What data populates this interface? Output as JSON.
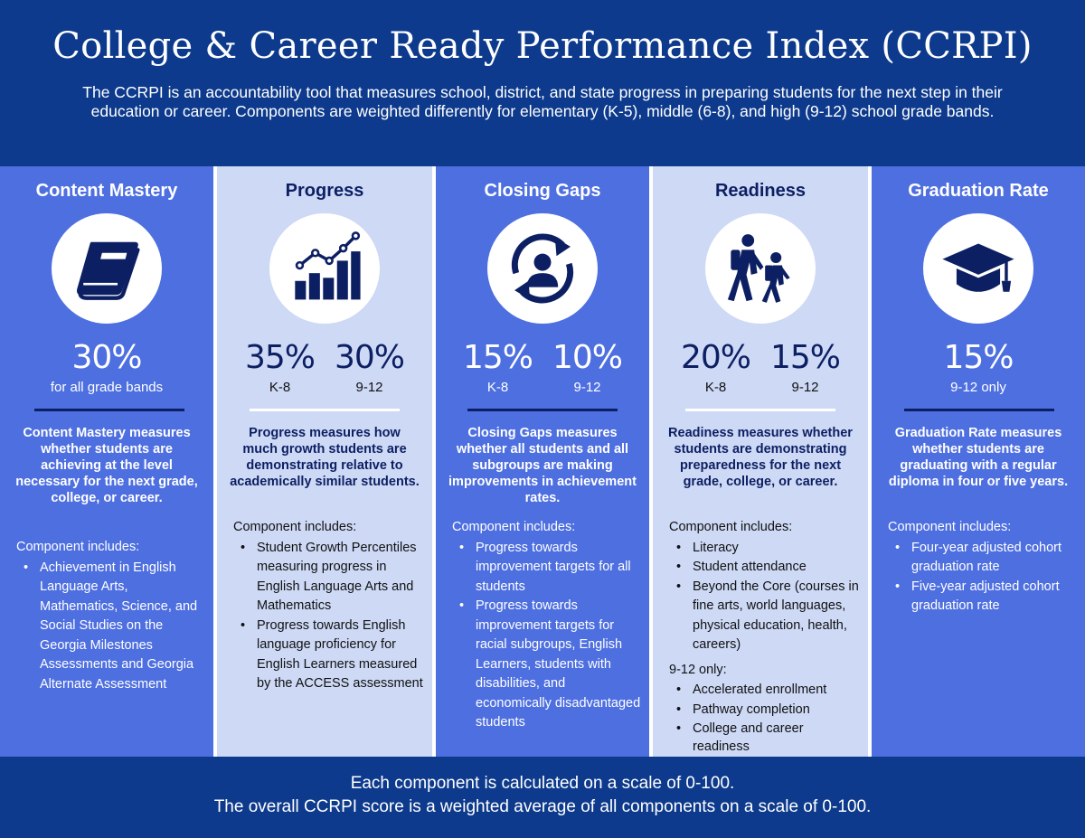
{
  "header": {
    "title": "College & Career Ready Performance Index (CCRPI)",
    "subtitle": "The CCRPI is an accountability tool that measures school, district, and state progress in preparing students for the next step in their education or career. Components are weighted differently for elementary (K-5), middle (6-8), and high (9-12) school grade bands."
  },
  "columns": [
    {
      "title": "Content Mastery",
      "icon": "book-icon",
      "weights": [
        {
          "pct": "30%",
          "band": "for all grade bands"
        }
      ],
      "description": "Content Mastery measures whether students are achieving at the level necessary for the next grade, college, or career.",
      "includes_label": "Component includes:",
      "items": [
        "Achievement in English Language Arts, Mathematics, Science, and Social Studies on the Georgia Milestones Assessments and Georgia Alternate Assessment"
      ]
    },
    {
      "title": "Progress",
      "icon": "growth-chart-icon",
      "weights": [
        {
          "pct": "35%",
          "band": "K-8"
        },
        {
          "pct": "30%",
          "band": "9-12"
        }
      ],
      "description": "Progress measures how much growth students are demonstrating relative to academically similar students.",
      "includes_label": "Component includes:",
      "items": [
        "Student Growth Percentiles measuring progress in English Language Arts and Mathematics",
        "Progress towards English language proficiency for English Learners measured by the ACCESS assessment"
      ]
    },
    {
      "title": "Closing Gaps",
      "icon": "person-cycle-icon",
      "weights": [
        {
          "pct": "15%",
          "band": "K-8"
        },
        {
          "pct": "10%",
          "band": "9-12"
        }
      ],
      "description": "Closing Gaps measures whether all students and all subgroups are making improvements in achievement rates.",
      "includes_label": "Component includes:",
      "items": [
        "Progress towards improvement targets for all students",
        "Progress towards improvement targets for racial subgroups, English Learners, students with disabilities, and economically disadvantaged students"
      ]
    },
    {
      "title": "Readiness",
      "icon": "walking-students-icon",
      "weights": [
        {
          "pct": "20%",
          "band": "K-8"
        },
        {
          "pct": "15%",
          "band": "9-12"
        }
      ],
      "description": "Readiness measures whether students are demonstrating preparedness for the next grade, college, or career.",
      "includes_label": "Component includes:",
      "items": [
        "Literacy",
        "Student attendance",
        "Beyond the Core (courses in fine arts, world languages, physical education, health, careers)"
      ],
      "sub_label": "9-12 only:",
      "sub_items": [
        "Accelerated enrollment",
        "Pathway completion",
        "College and career readiness"
      ]
    },
    {
      "title": "Graduation Rate",
      "icon": "graduation-cap-icon",
      "weights": [
        {
          "pct": "15%",
          "band": "9-12 only"
        }
      ],
      "description": "Graduation Rate measures whether students are graduating with a regular diploma in four or five years.",
      "includes_label": "Component includes:",
      "items": [
        "Four-year adjusted cohort graduation rate",
        "Five-year adjusted cohort graduation rate"
      ]
    }
  ],
  "footer": {
    "line1": "Each component is calculated on a scale of 0-100.",
    "line2": "The overall CCRPI score is a weighted average of all components on a scale of 0-100."
  },
  "colors": {
    "navy": "#0d3a8c",
    "dark_column": "#4e6fe0",
    "light_column": "#cdd9f5",
    "icon_navy": "#0d1f63"
  }
}
